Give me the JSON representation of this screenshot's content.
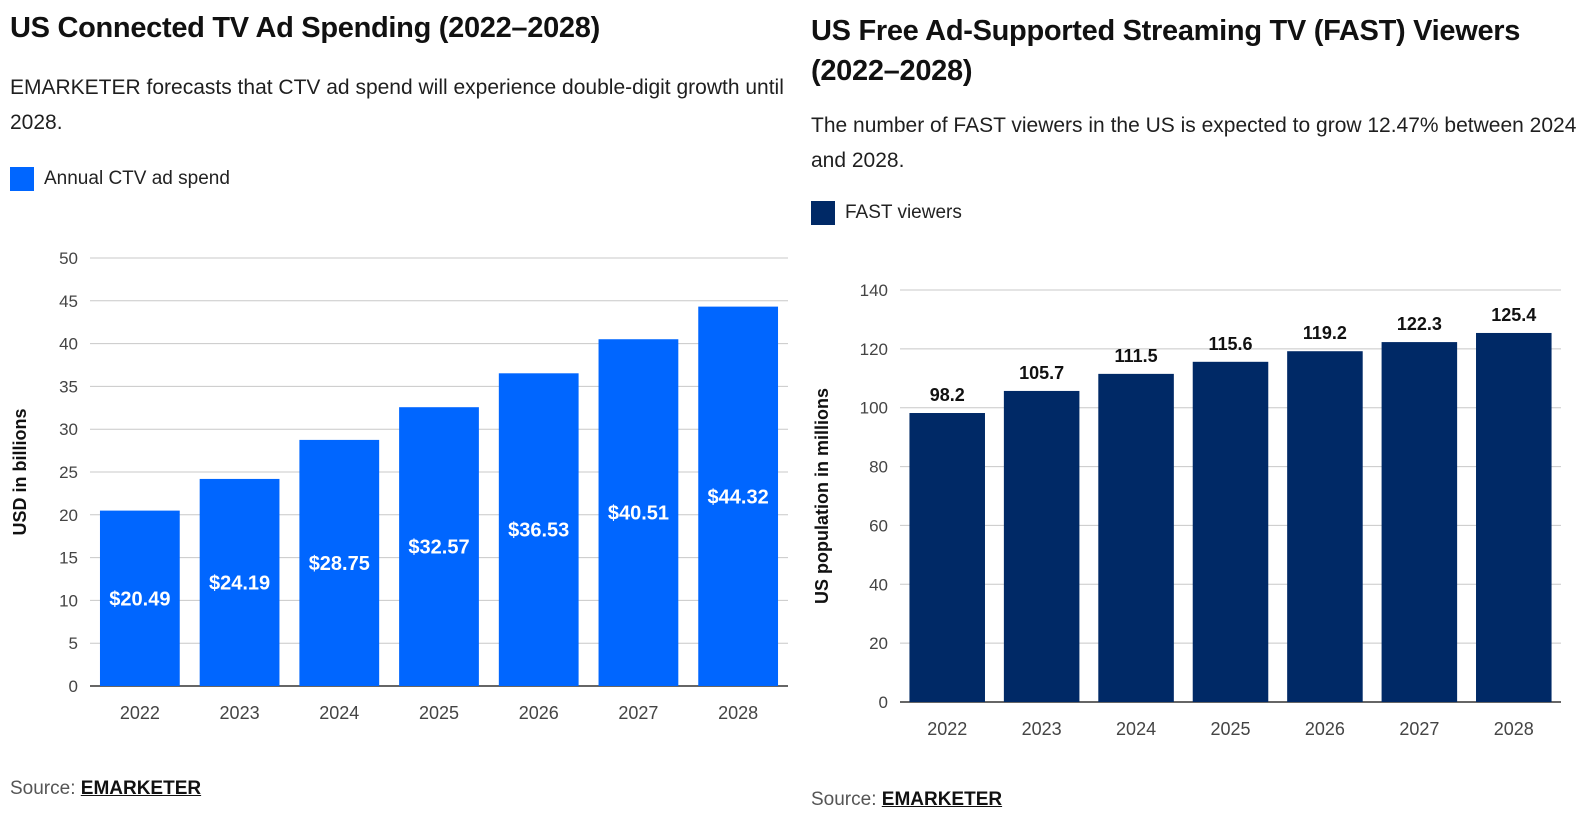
{
  "left": {
    "title": "US Connected TV Ad Spending (2022–2028)",
    "subtitle": "EMARKETER forecasts that CTV ad spend will experience double-digit growth until 2028.",
    "legend_label": "Annual CTV ad spend",
    "source_prefix": "Source: ",
    "source_link": "EMARKETER",
    "color": "#0066ff"
  },
  "right": {
    "title": "US Free Ad-Supported Streaming TV (FAST) Viewers (2022–2028)",
    "subtitle": "The number of FAST viewers in the US is expected to grow 12.47% between 2024 and 2028.",
    "legend_label": "FAST viewers",
    "source_prefix": "Source: ",
    "source_link": "EMARKETER",
    "color": "#002966"
  },
  "chart_data": [
    {
      "type": "bar",
      "title": "US Connected TV Ad Spending (2022–2028)",
      "categories": [
        "2022",
        "2023",
        "2024",
        "2025",
        "2026",
        "2027",
        "2028"
      ],
      "series": [
        {
          "name": "Annual CTV ad spend",
          "values": [
            20.49,
            24.19,
            28.75,
            32.57,
            36.53,
            40.51,
            44.32
          ],
          "labels": [
            "$20.49",
            "$24.19",
            "$28.75",
            "$32.57",
            "$36.53",
            "$40.51",
            "$44.32"
          ]
        }
      ],
      "xlabel": "",
      "ylabel": "USD in billions",
      "ylim": [
        0,
        50
      ],
      "yticks": [
        0,
        5,
        10,
        15,
        20,
        25,
        30,
        35,
        40,
        45,
        50
      ],
      "grid": true,
      "legend": "top-left",
      "data_label_position": "inside",
      "color": "#0066ff"
    },
    {
      "type": "bar",
      "title": "US Free Ad-Supported Streaming TV (FAST) Viewers (2022–2028)",
      "categories": [
        "2022",
        "2023",
        "2024",
        "2025",
        "2026",
        "2027",
        "2028"
      ],
      "series": [
        {
          "name": "FAST viewers",
          "values": [
            98.2,
            105.7,
            111.5,
            115.6,
            119.2,
            122.3,
            125.4
          ],
          "labels": [
            "98.2",
            "105.7",
            "111.5",
            "115.6",
            "119.2",
            "122.3",
            "125.4"
          ]
        }
      ],
      "xlabel": "",
      "ylabel": "US population in millions",
      "ylim": [
        0,
        140
      ],
      "yticks": [
        0,
        20,
        40,
        60,
        80,
        100,
        120,
        140
      ],
      "grid": true,
      "legend": "top-left",
      "data_label_position": "above",
      "color": "#002966"
    }
  ]
}
